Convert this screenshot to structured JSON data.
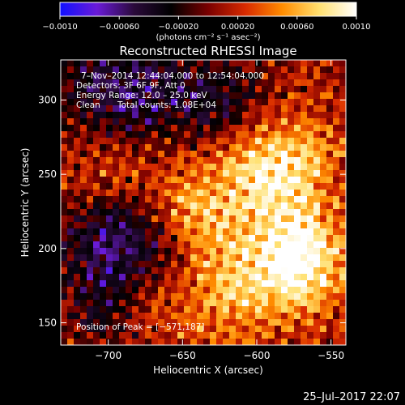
{
  "chart_data": {
    "type": "heatmap",
    "title": "Reconstructed RHESSI Image",
    "xlabel": "Heliocentric X (arcsec)",
    "ylabel": "Heliocentric Y (arcsec)",
    "xlim": [
      -732,
      -540
    ],
    "ylim": [
      135,
      327
    ],
    "xticks": [
      -700,
      -650,
      -600,
      -550
    ],
    "yticks": [
      150,
      200,
      250,
      300
    ],
    "colorbar": {
      "range": [
        -0.001,
        0.001
      ],
      "ticks": [
        "−0.0010",
        "−0.00060",
        "−0.00020",
        "0.00020",
        "0.00060",
        "0.0010"
      ],
      "tick_values": [
        -0.001,
        -0.0006,
        -0.0002,
        0.0002,
        0.0006,
        0.001
      ],
      "unit": "(photons cm⁻² s⁻¹ asec⁻²)",
      "colors": [
        "#1010ff",
        "#6a1bd8",
        "#2a0a3a",
        "#000000",
        "#7a0000",
        "#d82a00",
        "#ff8c00",
        "#ffe070",
        "#ffffff"
      ]
    },
    "annotations": {
      "time_range": "7–Nov–2014 12:44:04.000 to 12:54:04.000",
      "detectors": "Detectors: 3F 6F 9F, Att 0",
      "energy": "Energy Range: 12.0 – 25.0 keV",
      "method": "Clean",
      "counts": "Total counts: 1.08E+04",
      "peak": "Position of Peak = [−571,187]"
    },
    "peak": {
      "x": -571,
      "y": 187
    },
    "bright_regions": [
      {
        "x": -573,
        "y": 192,
        "radius": 22,
        "level": 1.0
      },
      {
        "x": -587,
        "y": 253,
        "radius": 26,
        "level": 0.78
      },
      {
        "x": -647,
        "y": 225,
        "radius": 26,
        "level": 0.62
      },
      {
        "x": -700,
        "y": 255,
        "radius": 25,
        "level": 0.5
      },
      {
        "x": -620,
        "y": 170,
        "radius": 24,
        "level": 0.45
      },
      {
        "x": -680,
        "y": 168,
        "radius": 20,
        "level": 0.38
      }
    ],
    "dark_regions": [
      {
        "x": -688,
        "y": 205,
        "radius": 30,
        "level": -0.9
      },
      {
        "x": -690,
        "y": 300,
        "radius": 32,
        "level": -0.7
      },
      {
        "x": -620,
        "y": 300,
        "radius": 22,
        "level": -0.45
      },
      {
        "x": -700,
        "y": 158,
        "radius": 16,
        "level": -0.4
      }
    ]
  },
  "footer": {
    "timestamp": "25–Jul–2017 22:07"
  }
}
